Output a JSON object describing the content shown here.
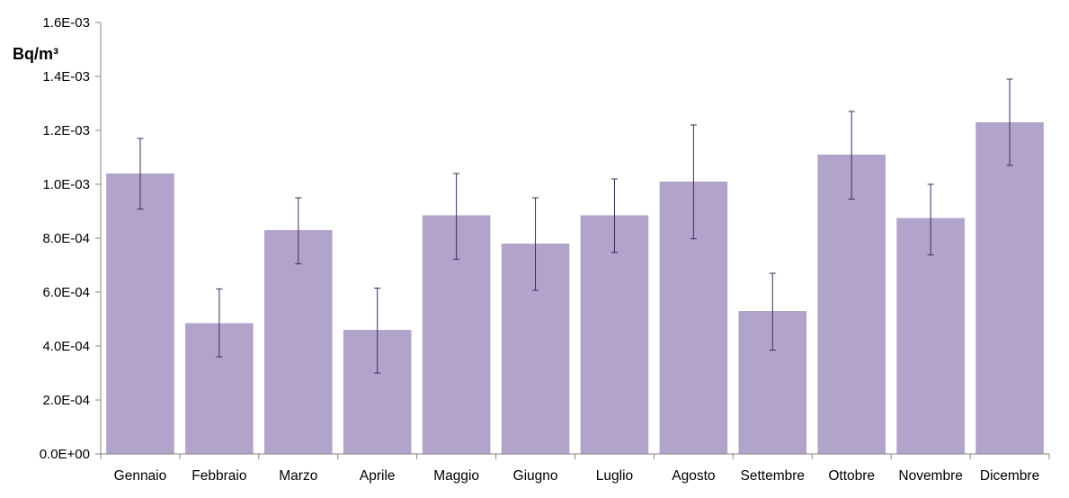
{
  "chart_data": {
    "type": "bar",
    "title": "",
    "xlabel": "",
    "ylabel": "Bq/m³",
    "ylim": [
      0,
      0.0016
    ],
    "yticks": [
      {
        "value": 0,
        "label": "0.0E+00"
      },
      {
        "value": 0.0002,
        "label": "2.0E-04"
      },
      {
        "value": 0.0004,
        "label": "4.0E-04"
      },
      {
        "value": 0.0006,
        "label": "6.0E-04"
      },
      {
        "value": 0.0008,
        "label": "8.0E-04"
      },
      {
        "value": 0.001,
        "label": "1.0E-03"
      },
      {
        "value": 0.0012,
        "label": "1.2E-03"
      },
      {
        "value": 0.0014,
        "label": "1.4E-03"
      },
      {
        "value": 0.0016,
        "label": "1.6E-03"
      }
    ],
    "categories": [
      "Gennaio",
      "Febbraio",
      "Marzo",
      "Aprile",
      "Maggio",
      "Giugno",
      "Luglio",
      "Agosto",
      "Settembre",
      "Ottobre",
      "Novembre",
      "Dicembre"
    ],
    "values": [
      0.00104,
      0.000485,
      0.00083,
      0.00046,
      0.000885,
      0.00078,
      0.000885,
      0.00101,
      0.00053,
      0.00111,
      0.000875,
      0.00123
    ],
    "error_low": [
      0.000908,
      0.00036,
      0.000705,
      0.0003,
      0.000722,
      0.000607,
      0.000747,
      0.000798,
      0.000385,
      0.000945,
      0.000738,
      0.00107
    ],
    "error_high": [
      0.00117,
      0.000612,
      0.00095,
      0.000615,
      0.00104,
      0.00095,
      0.00102,
      0.00122,
      0.00067,
      0.00127,
      0.001,
      0.00139
    ],
    "grid": false,
    "legend": "none",
    "colors": {
      "bar": "#b1a3c9",
      "error_bar": "#3d2b5c",
      "axis": "#868686"
    }
  }
}
